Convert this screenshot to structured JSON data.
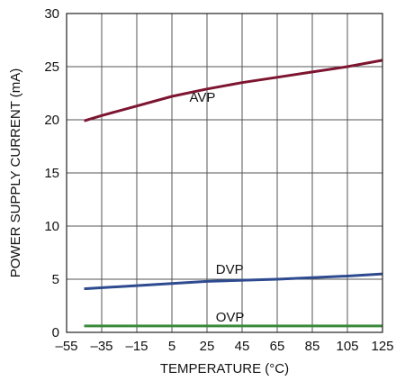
{
  "chart_data": {
    "type": "line",
    "xlabel": "TEMPERATURE (°C)",
    "ylabel": "POWER SUPPLY CURRENT (mA)",
    "xlim": [
      -55,
      125
    ],
    "ylim": [
      0,
      30
    ],
    "xticks": [
      "–55",
      "–35",
      "–15",
      "5",
      "25",
      "45",
      "65",
      "85",
      "105",
      "125"
    ],
    "yticks": [
      "0",
      "5",
      "10",
      "15",
      "20",
      "25",
      "30"
    ],
    "grid": true,
    "series": [
      {
        "name": "AVP",
        "color": "#7d1530",
        "x": [
          -45,
          -35,
          -15,
          5,
          25,
          45,
          65,
          85,
          105,
          125
        ],
        "y": [
          19.9,
          20.4,
          21.3,
          22.2,
          22.9,
          23.5,
          24.0,
          24.5,
          25.0,
          25.6
        ]
      },
      {
        "name": "DVP",
        "color": "#2e4b8f",
        "x": [
          -45,
          -15,
          25,
          65,
          105,
          125
        ],
        "y": [
          4.1,
          4.4,
          4.8,
          5.0,
          5.3,
          5.5
        ]
      },
      {
        "name": "OVP",
        "color": "#3a8a3a",
        "x": [
          -45,
          125
        ],
        "y": [
          0.6,
          0.6
        ]
      }
    ]
  }
}
